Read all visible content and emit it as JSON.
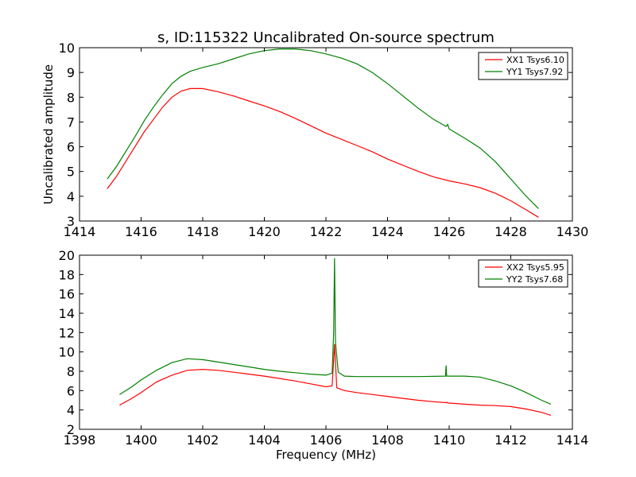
{
  "figure": {
    "title": "s, ID:115322 Uncalibrated On-source spectrum",
    "colors": {
      "xx": "#ff0000",
      "yy": "#008000"
    }
  },
  "chart_data": [
    {
      "type": "line",
      "title": "s, ID:115322 Uncalibrated On-source spectrum",
      "xlabel": "",
      "ylabel": "Uncalibrated amplitude",
      "xlim": [
        1414,
        1430
      ],
      "ylim": [
        3,
        10
      ],
      "xticks": [
        1414,
        1416,
        1418,
        1420,
        1422,
        1424,
        1426,
        1428,
        1430
      ],
      "yticks": [
        3,
        4,
        5,
        6,
        7,
        8,
        9,
        10
      ],
      "legend": "top-right",
      "series": [
        {
          "name": "XX1 Tsys6.10",
          "color": "#ff0000",
          "points": [
            [
              1414.9,
              4.3
            ],
            [
              1415.2,
              4.8
            ],
            [
              1415.5,
              5.4
            ],
            [
              1415.8,
              6.0
            ],
            [
              1416.1,
              6.6
            ],
            [
              1416.4,
              7.1
            ],
            [
              1416.7,
              7.6
            ],
            [
              1417.0,
              8.0
            ],
            [
              1417.3,
              8.25
            ],
            [
              1417.6,
              8.35
            ],
            [
              1418.0,
              8.35
            ],
            [
              1418.5,
              8.22
            ],
            [
              1419.0,
              8.05
            ],
            [
              1419.5,
              7.85
            ],
            [
              1420.0,
              7.65
            ],
            [
              1420.5,
              7.42
            ],
            [
              1421.0,
              7.15
            ],
            [
              1421.5,
              6.85
            ],
            [
              1422.0,
              6.55
            ],
            [
              1422.5,
              6.3
            ],
            [
              1423.0,
              6.05
            ],
            [
              1423.5,
              5.8
            ],
            [
              1424.0,
              5.5
            ],
            [
              1424.5,
              5.25
            ],
            [
              1425.0,
              5.0
            ],
            [
              1425.5,
              4.78
            ],
            [
              1426.0,
              4.62
            ],
            [
              1426.5,
              4.5
            ],
            [
              1427.0,
              4.35
            ],
            [
              1427.5,
              4.12
            ],
            [
              1428.0,
              3.82
            ],
            [
              1428.5,
              3.45
            ],
            [
              1428.9,
              3.15
            ]
          ]
        },
        {
          "name": "YY1 Tsys7.92",
          "color": "#008000",
          "points": [
            [
              1414.9,
              4.7
            ],
            [
              1415.2,
              5.2
            ],
            [
              1415.5,
              5.8
            ],
            [
              1415.8,
              6.4
            ],
            [
              1416.1,
              7.05
            ],
            [
              1416.4,
              7.6
            ],
            [
              1416.7,
              8.1
            ],
            [
              1417.0,
              8.55
            ],
            [
              1417.3,
              8.85
            ],
            [
              1417.6,
              9.05
            ],
            [
              1418.0,
              9.2
            ],
            [
              1418.5,
              9.35
            ],
            [
              1419.0,
              9.55
            ],
            [
              1419.5,
              9.75
            ],
            [
              1420.0,
              9.88
            ],
            [
              1420.5,
              9.95
            ],
            [
              1421.0,
              9.95
            ],
            [
              1421.5,
              9.88
            ],
            [
              1422.0,
              9.75
            ],
            [
              1422.5,
              9.58
            ],
            [
              1423.0,
              9.35
            ],
            [
              1423.5,
              9.0
            ],
            [
              1424.0,
              8.55
            ],
            [
              1424.5,
              8.05
            ],
            [
              1425.0,
              7.55
            ],
            [
              1425.5,
              7.1
            ],
            [
              1425.9,
              6.82
            ],
            [
              1425.95,
              6.9
            ],
            [
              1426.0,
              6.72
            ],
            [
              1426.5,
              6.35
            ],
            [
              1427.0,
              5.95
            ],
            [
              1427.5,
              5.4
            ],
            [
              1428.0,
              4.7
            ],
            [
              1428.5,
              4.0
            ],
            [
              1428.9,
              3.5
            ]
          ]
        }
      ]
    },
    {
      "type": "line",
      "title": "",
      "xlabel": "Frequency (MHz)",
      "ylabel": "",
      "xlim": [
        1398,
        1414
      ],
      "ylim": [
        2,
        20
      ],
      "xticks": [
        1398,
        1400,
        1402,
        1404,
        1406,
        1408,
        1410,
        1412,
        1414
      ],
      "yticks": [
        2,
        4,
        6,
        8,
        10,
        12,
        14,
        16,
        18,
        20
      ],
      "legend": "top-right",
      "series": [
        {
          "name": "XX2 Tsys5.95",
          "color": "#ff0000",
          "points": [
            [
              1399.3,
              4.5
            ],
            [
              1399.7,
              5.2
            ],
            [
              1400.0,
              5.8
            ],
            [
              1400.5,
              6.9
            ],
            [
              1401.0,
              7.6
            ],
            [
              1401.5,
              8.1
            ],
            [
              1402.0,
              8.2
            ],
            [
              1402.5,
              8.1
            ],
            [
              1403.0,
              7.9
            ],
            [
              1403.5,
              7.7
            ],
            [
              1404.0,
              7.5
            ],
            [
              1404.5,
              7.25
            ],
            [
              1405.0,
              7.0
            ],
            [
              1405.5,
              6.7
            ],
            [
              1406.0,
              6.4
            ],
            [
              1406.2,
              6.5
            ],
            [
              1406.28,
              10.8
            ],
            [
              1406.35,
              6.3
            ],
            [
              1406.6,
              6.0
            ],
            [
              1407.0,
              5.8
            ],
            [
              1407.5,
              5.6
            ],
            [
              1408.0,
              5.4
            ],
            [
              1408.5,
              5.2
            ],
            [
              1409.0,
              5.0
            ],
            [
              1409.5,
              4.85
            ],
            [
              1409.9,
              4.75
            ],
            [
              1409.92,
              4.8
            ],
            [
              1409.95,
              4.72
            ],
            [
              1410.5,
              4.6
            ],
            [
              1411.0,
              4.5
            ],
            [
              1411.5,
              4.45
            ],
            [
              1412.0,
              4.35
            ],
            [
              1412.5,
              4.1
            ],
            [
              1413.0,
              3.75
            ],
            [
              1413.3,
              3.45
            ]
          ]
        },
        {
          "name": "YY2 Tsys7.68",
          "color": "#008000",
          "points": [
            [
              1399.3,
              5.6
            ],
            [
              1399.7,
              6.4
            ],
            [
              1400.0,
              7.1
            ],
            [
              1400.5,
              8.1
            ],
            [
              1401.0,
              8.9
            ],
            [
              1401.5,
              9.3
            ],
            [
              1402.0,
              9.2
            ],
            [
              1402.5,
              8.95
            ],
            [
              1403.0,
              8.7
            ],
            [
              1403.5,
              8.45
            ],
            [
              1404.0,
              8.2
            ],
            [
              1404.5,
              8.0
            ],
            [
              1405.0,
              7.85
            ],
            [
              1405.5,
              7.7
            ],
            [
              1406.0,
              7.6
            ],
            [
              1406.2,
              7.8
            ],
            [
              1406.25,
              12.0
            ],
            [
              1406.28,
              19.7
            ],
            [
              1406.31,
              11.0
            ],
            [
              1406.4,
              7.9
            ],
            [
              1406.6,
              7.5
            ],
            [
              1407.0,
              7.45
            ],
            [
              1408.0,
              7.45
            ],
            [
              1409.0,
              7.45
            ],
            [
              1409.88,
              7.5
            ],
            [
              1409.9,
              8.6
            ],
            [
              1409.92,
              7.5
            ],
            [
              1410.5,
              7.5
            ],
            [
              1411.0,
              7.4
            ],
            [
              1411.5,
              7.0
            ],
            [
              1412.0,
              6.5
            ],
            [
              1412.5,
              5.8
            ],
            [
              1413.0,
              5.0
            ],
            [
              1413.3,
              4.6
            ]
          ]
        }
      ]
    }
  ]
}
